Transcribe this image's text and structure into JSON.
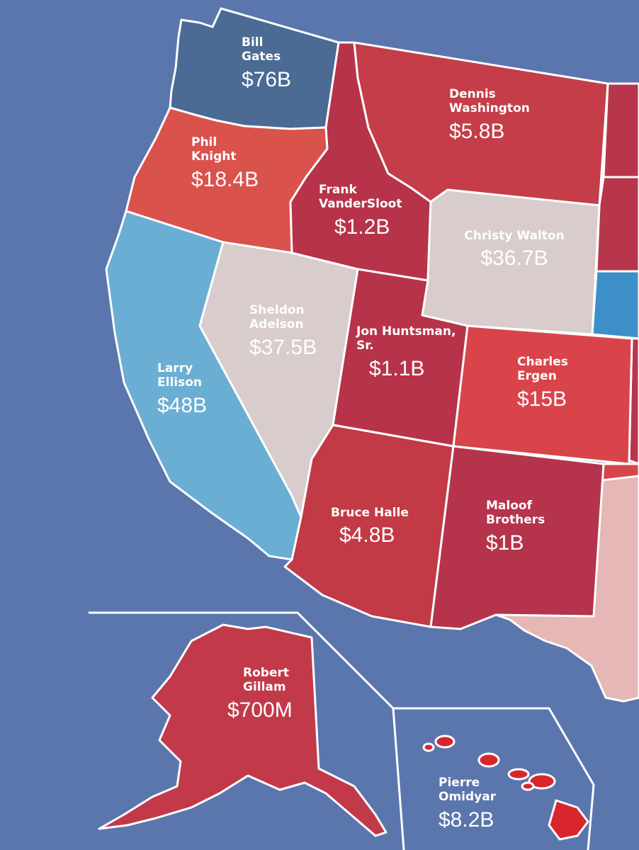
{
  "colors": {
    "ocean": "#5a76ad",
    "border": "#ffffff",
    "washington": "#4b6a94",
    "oregon": "#d9534c",
    "california": "#6aaed3",
    "nevada": "#d8cccc",
    "idaho": "#b7334a",
    "montana": "#c43d48",
    "wyoming": "#d8cccc",
    "utah": "#b7334a",
    "colorado": "#d9444a",
    "arizona": "#c23a45",
    "new_mexico": "#b5344b",
    "alaska": "#c23a4a",
    "hawaii": "#d9262e",
    "east_neighbors": "#b8364b",
    "texas": "#e5b7b5",
    "nebraska_blue": "#3d8fc8"
  },
  "states": [
    {
      "id": "washington",
      "name": "Bill Gates",
      "worth": "$76B"
    },
    {
      "id": "oregon",
      "name": "Phil Knight",
      "worth": "$18.4B"
    },
    {
      "id": "california",
      "name": "Larry Ellison",
      "worth": "$48B"
    },
    {
      "id": "nevada",
      "name": "Sheldon Adelson",
      "worth": "$37.5B"
    },
    {
      "id": "idaho",
      "name": "Frank VanderSloot",
      "worth": "$1.2B"
    },
    {
      "id": "montana",
      "name": "Dennis Washington",
      "worth": "$5.8B"
    },
    {
      "id": "wyoming",
      "name": "Christy Walton",
      "worth": "$36.7B"
    },
    {
      "id": "utah",
      "name": "Jon Huntsman, Sr.",
      "worth": "$1.1B"
    },
    {
      "id": "colorado",
      "name": "Charles Ergen",
      "worth": "$15B"
    },
    {
      "id": "arizona",
      "name": "Bruce Halle",
      "worth": "$4.8B"
    },
    {
      "id": "new_mexico",
      "name": "Maloof Brothers",
      "worth": "$1B"
    },
    {
      "id": "alaska",
      "name": "Robert Gillam",
      "worth": "$700M"
    },
    {
      "id": "hawaii",
      "name": "Pierre Omidyar",
      "worth": "$8.2B"
    }
  ]
}
